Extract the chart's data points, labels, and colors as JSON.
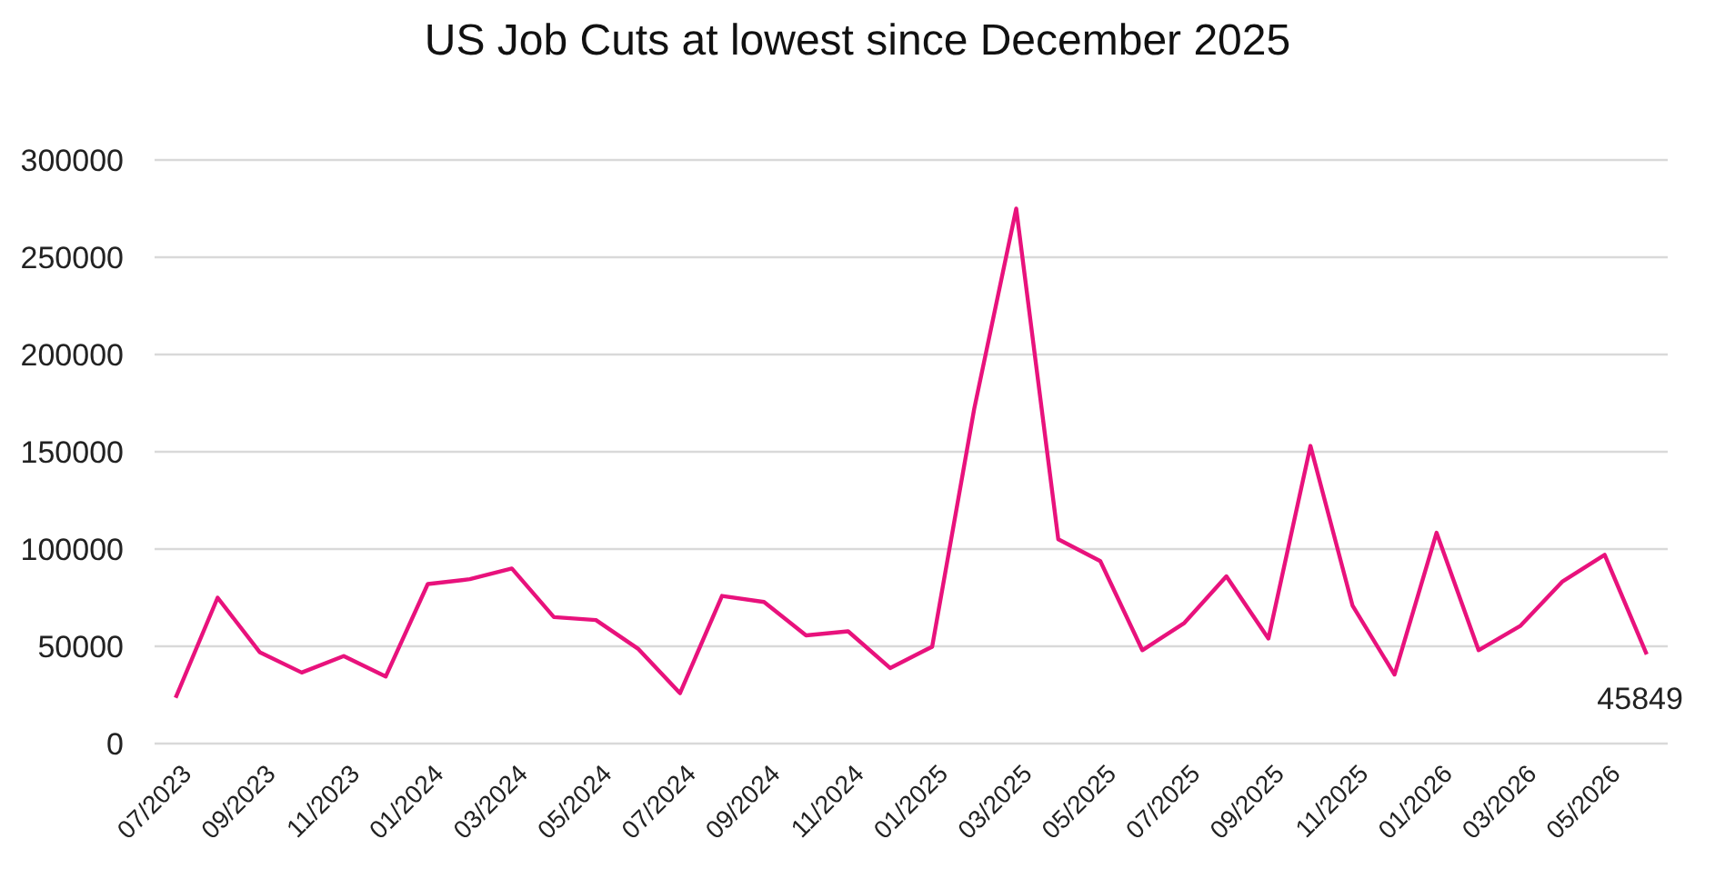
{
  "chart_data": {
    "type": "line",
    "title": "US Job Cuts at lowest since December 2025",
    "categories": [
      "07/2023",
      null,
      "09/2023",
      null,
      "11/2023",
      null,
      "01/2024",
      null,
      "03/2024",
      null,
      "05/2024",
      null,
      "07/2024",
      null,
      "09/2024",
      null,
      "11/2024",
      null,
      "01/2025",
      null,
      "03/2025",
      null,
      "05/2025",
      null,
      "07/2025",
      null,
      "09/2025",
      null,
      "11/2025",
      null,
      "01/2026",
      null,
      "03/2026",
      null,
      "05/2026",
      null
    ],
    "series": [
      {
        "color": "#e8127c",
        "values": [
          23500,
          75000,
          47000,
          36500,
          45000,
          34500,
          82000,
          84500,
          90000,
          65000,
          63500,
          48800,
          25900,
          75900,
          72800,
          55600,
          57700,
          38800,
          49800,
          172000,
          275000,
          105000,
          93800,
          48000,
          62000,
          86000,
          54000,
          153000,
          71000,
          35500,
          108400,
          48000,
          60600,
          83400,
          97000,
          45849
        ],
        "value_labels": [
          null,
          null,
          null,
          null,
          null,
          null,
          null,
          null,
          null,
          null,
          null,
          null,
          null,
          null,
          null,
          null,
          null,
          null,
          null,
          null,
          null,
          null,
          null,
          null,
          null,
          null,
          null,
          null,
          null,
          null,
          null,
          null,
          null,
          null,
          null,
          "45849"
        ]
      }
    ],
    "ylim": [
      0,
      300000
    ],
    "yticks": [
      0,
      50000,
      100000,
      150000,
      200000,
      250000,
      300000
    ],
    "grid": "y",
    "marker": "none",
    "line_style": "solid"
  }
}
